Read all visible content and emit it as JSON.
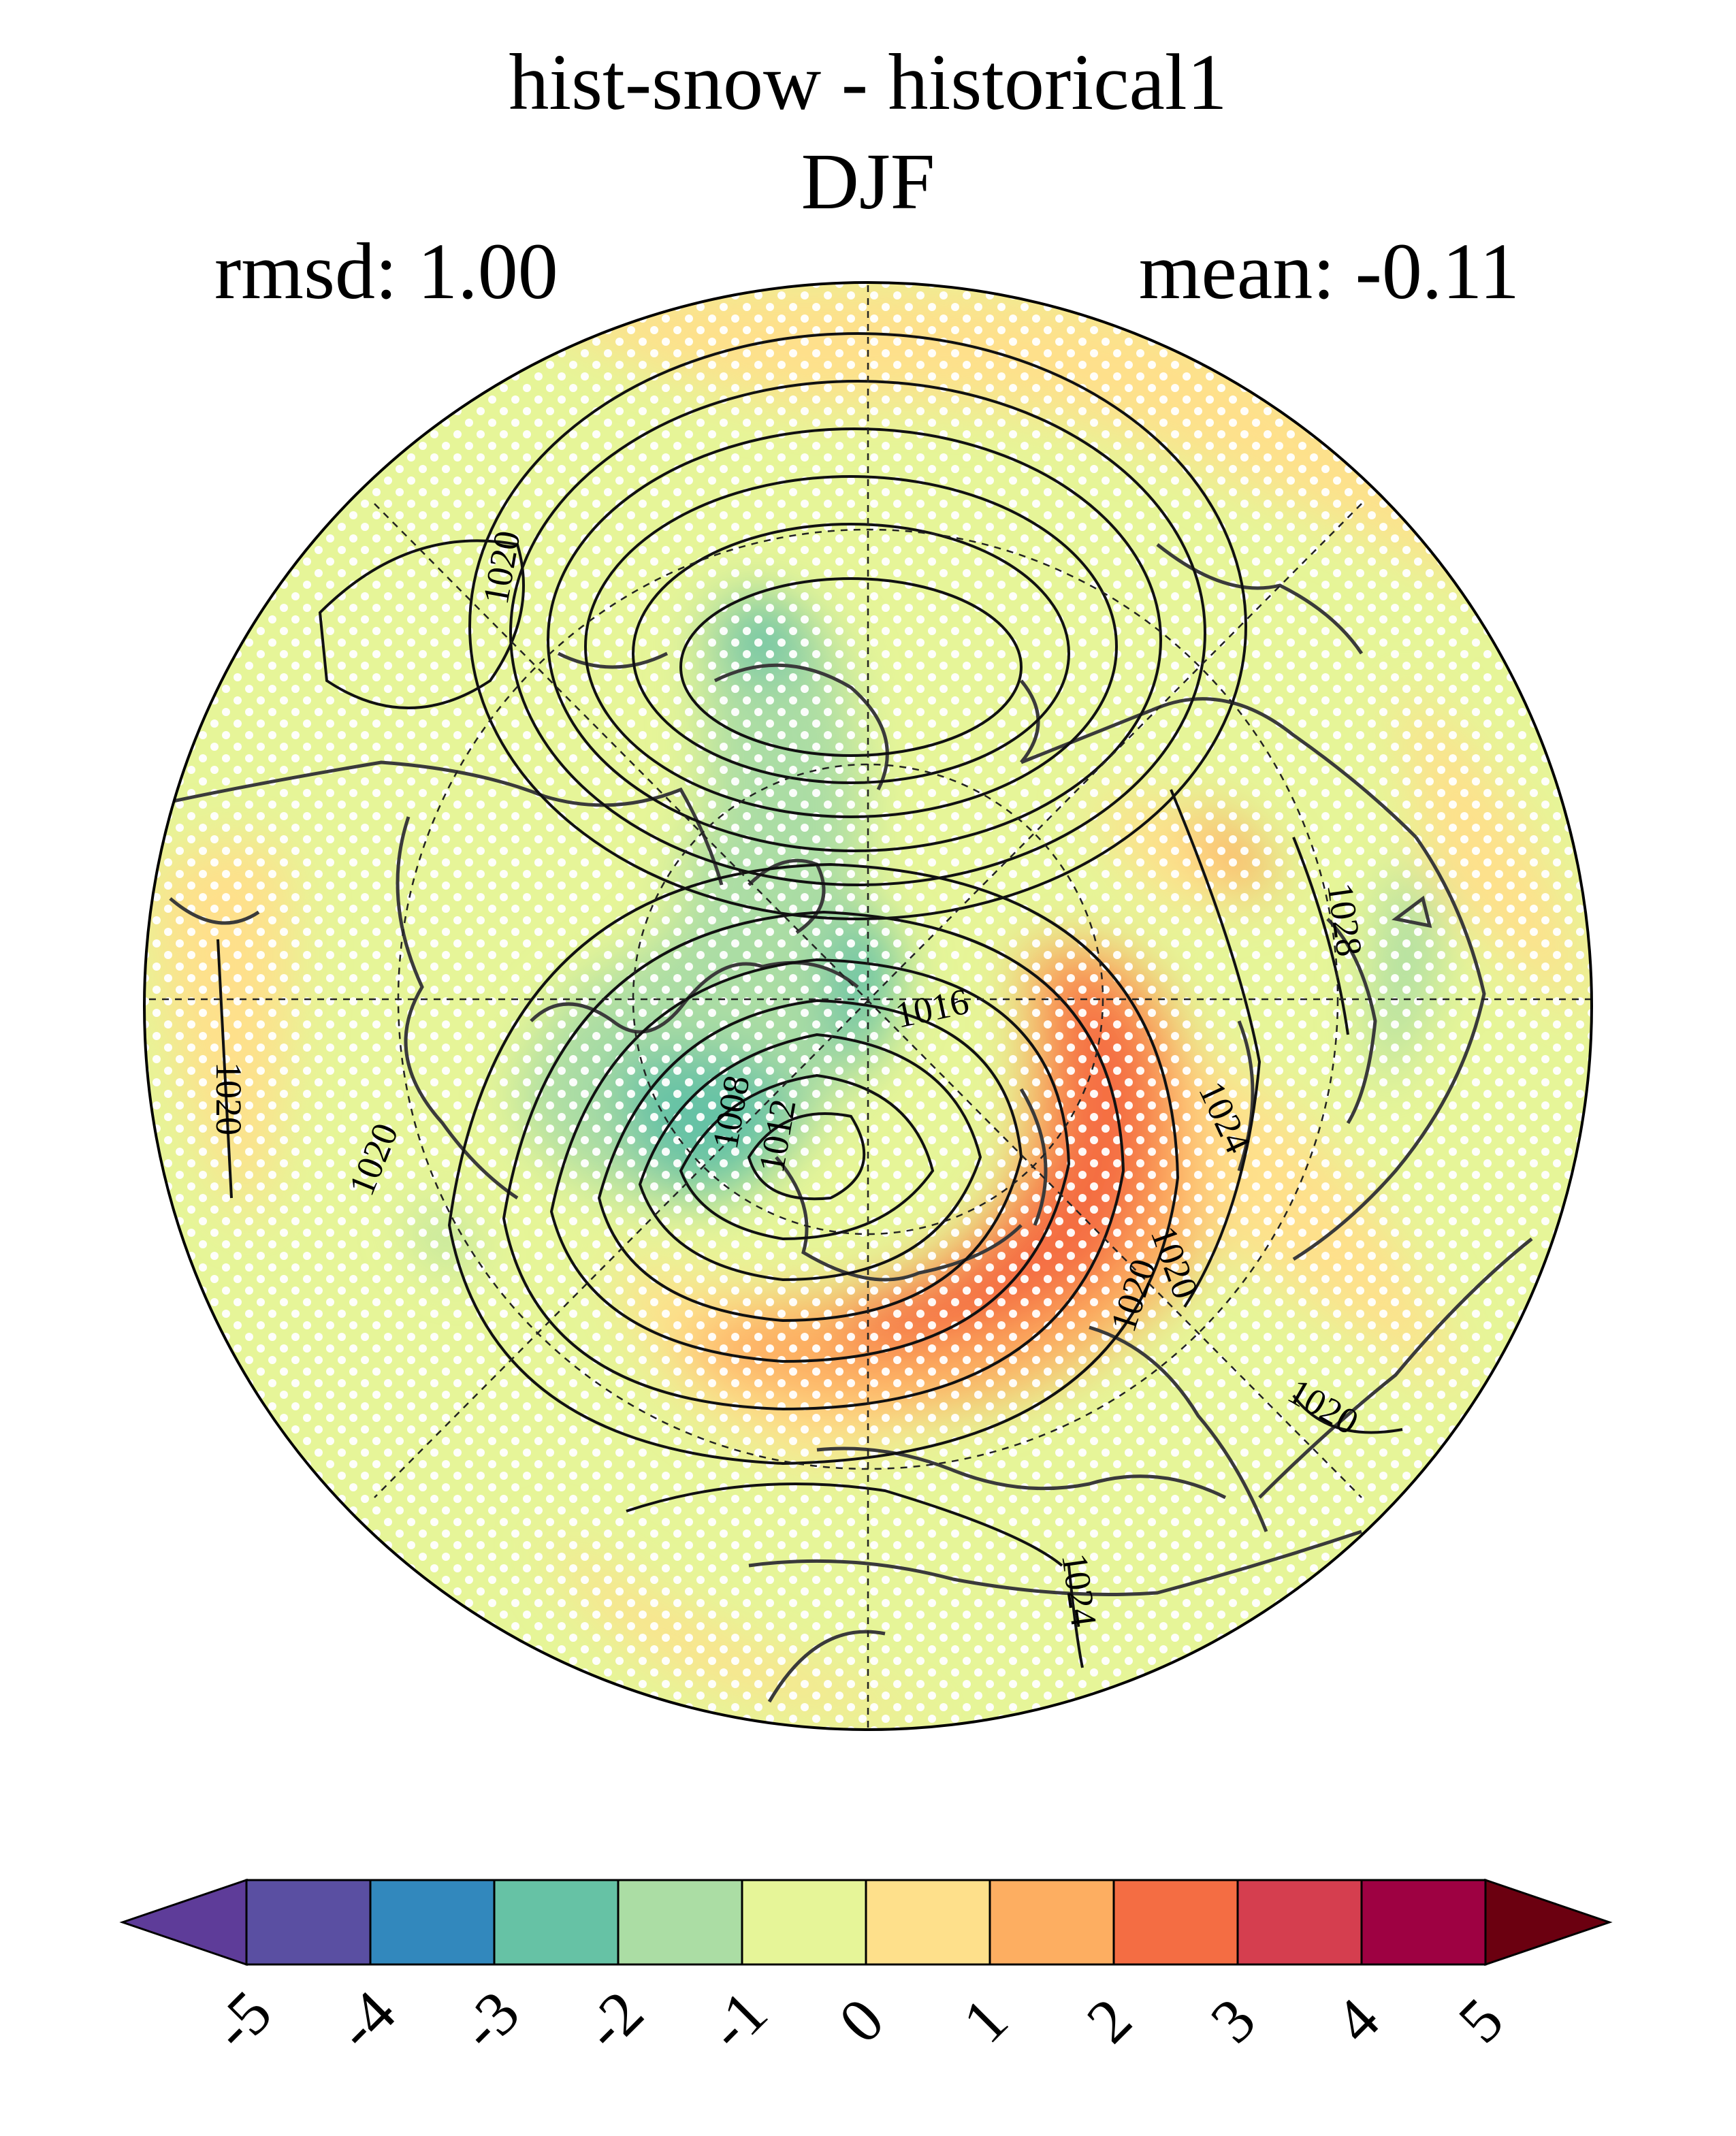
{
  "title": {
    "line1": "hist-snow - historical1",
    "line2": "DJF",
    "rmsd_label": "rmsd: 1.00",
    "mean_label": "mean: -0.11"
  },
  "map": {
    "projection": "north-polar-stereographic",
    "contour_labels": [
      "1020",
      "1020",
      "1020",
      "1016",
      "1008",
      "1012",
      "1028",
      "1024",
      "1020",
      "1020",
      "1020",
      "1024"
    ]
  },
  "colorbar": {
    "ticks": [
      "-5",
      "-4",
      "-3",
      "-2",
      "-1",
      "0",
      "1",
      "2",
      "3",
      "4",
      "5"
    ],
    "colors": [
      "#5e3c99",
      "#5a4fa2",
      "#3288bd",
      "#66c2a5",
      "#abdda4",
      "#e6f598",
      "#fee08b",
      "#fdae61",
      "#f46d43",
      "#d53e4f",
      "#9e0142",
      "#6b0010"
    ],
    "extend": "both"
  }
}
